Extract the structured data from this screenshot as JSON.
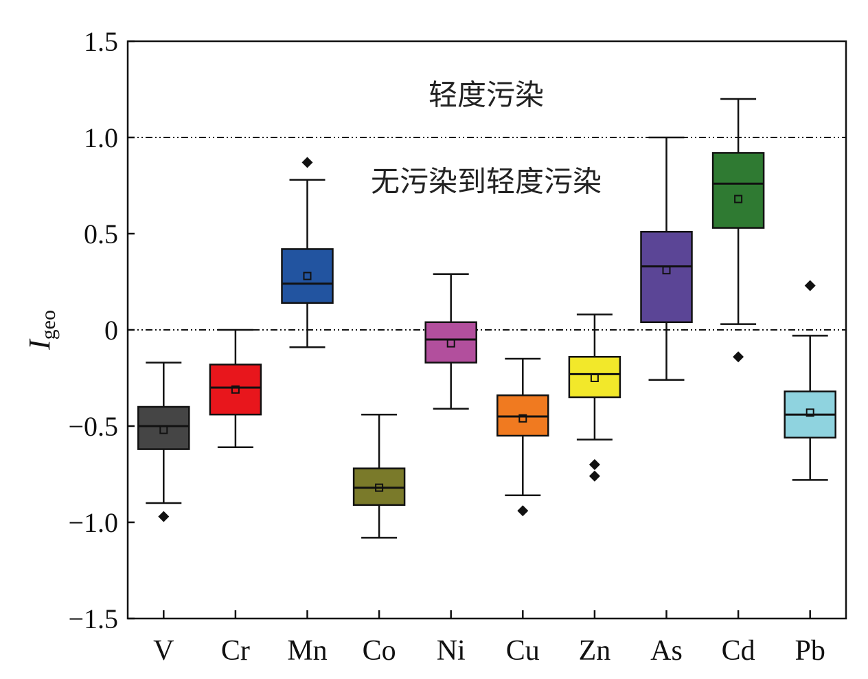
{
  "chart_data": {
    "type": "box",
    "ylabel": "I",
    "ylabel_subscript": "geo",
    "ylim": [
      -1.5,
      1.5
    ],
    "yticks": [
      {
        "value": 1.5,
        "label": "1.5"
      },
      {
        "value": 1.0,
        "label": "1.0"
      },
      {
        "value": 0.5,
        "label": "0.5"
      },
      {
        "value": 0,
        "label": "0"
      },
      {
        "value": -0.5,
        "label": "−0.5"
      },
      {
        "value": -1.0,
        "label": "−1.0"
      },
      {
        "value": -1.5,
        "label": "−1.5"
      }
    ],
    "reference_lines": [
      {
        "value": 1.0,
        "style": "dash-dot-dot"
      },
      {
        "value": 0.0,
        "style": "dash-dot-dot"
      }
    ],
    "annotations": [
      {
        "text": "轻度污染",
        "y": 1.22
      },
      {
        "text": "无污染到轻度污染",
        "y": 0.77
      }
    ],
    "categories": [
      "V",
      "Cr",
      "Mn",
      "Co",
      "Ni",
      "Cu",
      "Zn",
      "As",
      "Cd",
      "Pb"
    ],
    "boxes": [
      {
        "name": "V",
        "color": "#454545",
        "whisker_low": -0.9,
        "q1": -0.62,
        "median": -0.5,
        "q3": -0.4,
        "whisker_high": -0.17,
        "mean": -0.52,
        "outliers": [
          -0.97
        ]
      },
      {
        "name": "Cr",
        "color": "#e8161c",
        "whisker_low": -0.61,
        "q1": -0.44,
        "median": -0.3,
        "q3": -0.18,
        "whisker_high": 0.0,
        "mean": -0.31,
        "outliers": []
      },
      {
        "name": "Mn",
        "color": "#2254a0",
        "whisker_low": -0.09,
        "q1": 0.14,
        "median": 0.24,
        "q3": 0.42,
        "whisker_high": 0.78,
        "mean": 0.28,
        "outliers": [
          0.87
        ]
      },
      {
        "name": "Co",
        "color": "#7a7a2a",
        "whisker_low": -1.08,
        "q1": -0.91,
        "median": -0.82,
        "q3": -0.72,
        "whisker_high": -0.44,
        "mean": -0.82,
        "outliers": []
      },
      {
        "name": "Ni",
        "color": "#b24f9d",
        "whisker_low": -0.41,
        "q1": -0.17,
        "median": -0.05,
        "q3": 0.04,
        "whisker_high": 0.29,
        "mean": -0.07,
        "outliers": []
      },
      {
        "name": "Cu",
        "color": "#f07a20",
        "whisker_low": -0.86,
        "q1": -0.55,
        "median": -0.45,
        "q3": -0.34,
        "whisker_high": -0.15,
        "mean": -0.46,
        "outliers": [
          -0.94
        ]
      },
      {
        "name": "Zn",
        "color": "#f2e82a",
        "whisker_low": -0.57,
        "q1": -0.35,
        "median": -0.23,
        "q3": -0.14,
        "whisker_high": 0.08,
        "mean": -0.25,
        "outliers": [
          -0.7,
          -0.76
        ]
      },
      {
        "name": "As",
        "color": "#5b4596",
        "whisker_low": -0.26,
        "q1": 0.04,
        "median": 0.33,
        "q3": 0.51,
        "whisker_high": 1.0,
        "mean": 0.31,
        "outliers": []
      },
      {
        "name": "Cd",
        "color": "#2f7a32",
        "whisker_low": 0.03,
        "q1": 0.53,
        "median": 0.76,
        "q3": 0.92,
        "whisker_high": 1.2,
        "mean": 0.68,
        "outliers": [
          -0.14
        ]
      },
      {
        "name": "Pb",
        "color": "#8fd3df",
        "whisker_low": -0.78,
        "q1": -0.56,
        "median": -0.44,
        "q3": -0.32,
        "whisker_high": -0.03,
        "mean": -0.43,
        "outliers": [
          0.23
        ]
      }
    ]
  }
}
